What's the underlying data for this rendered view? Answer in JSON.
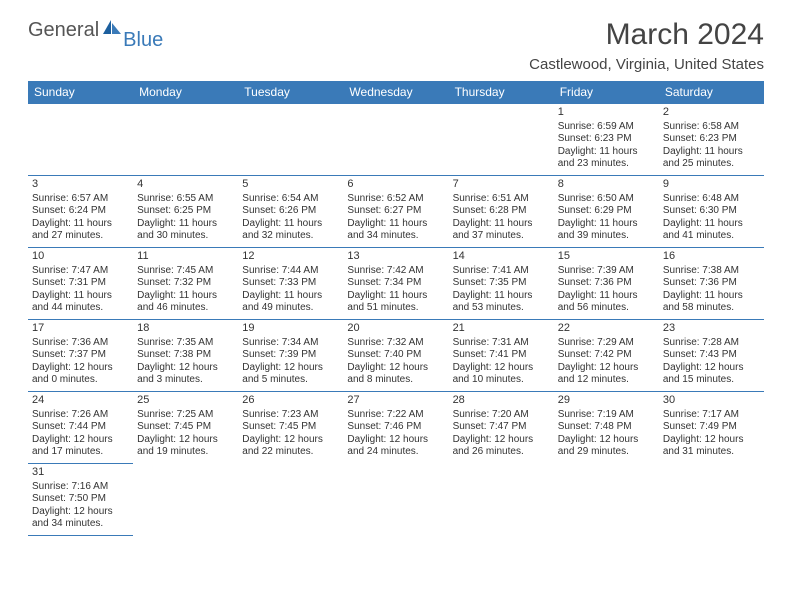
{
  "brand": {
    "general": "General",
    "blue": "Blue"
  },
  "title": "March 2024",
  "location": "Castlewood, Virginia, United States",
  "colors": {
    "header_bg": "#3a7ab8",
    "header_fg": "#ffffff",
    "border": "#3a7ab8",
    "text": "#333333"
  },
  "day_headers": [
    "Sunday",
    "Monday",
    "Tuesday",
    "Wednesday",
    "Thursday",
    "Friday",
    "Saturday"
  ],
  "weeks": [
    [
      null,
      null,
      null,
      null,
      null,
      {
        "n": "1",
        "sr": "Sunrise: 6:59 AM",
        "ss": "Sunset: 6:23 PM",
        "d1": "Daylight: 11 hours",
        "d2": "and 23 minutes."
      },
      {
        "n": "2",
        "sr": "Sunrise: 6:58 AM",
        "ss": "Sunset: 6:23 PM",
        "d1": "Daylight: 11 hours",
        "d2": "and 25 minutes."
      }
    ],
    [
      {
        "n": "3",
        "sr": "Sunrise: 6:57 AM",
        "ss": "Sunset: 6:24 PM",
        "d1": "Daylight: 11 hours",
        "d2": "and 27 minutes."
      },
      {
        "n": "4",
        "sr": "Sunrise: 6:55 AM",
        "ss": "Sunset: 6:25 PM",
        "d1": "Daylight: 11 hours",
        "d2": "and 30 minutes."
      },
      {
        "n": "5",
        "sr": "Sunrise: 6:54 AM",
        "ss": "Sunset: 6:26 PM",
        "d1": "Daylight: 11 hours",
        "d2": "and 32 minutes."
      },
      {
        "n": "6",
        "sr": "Sunrise: 6:52 AM",
        "ss": "Sunset: 6:27 PM",
        "d1": "Daylight: 11 hours",
        "d2": "and 34 minutes."
      },
      {
        "n": "7",
        "sr": "Sunrise: 6:51 AM",
        "ss": "Sunset: 6:28 PM",
        "d1": "Daylight: 11 hours",
        "d2": "and 37 minutes."
      },
      {
        "n": "8",
        "sr": "Sunrise: 6:50 AM",
        "ss": "Sunset: 6:29 PM",
        "d1": "Daylight: 11 hours",
        "d2": "and 39 minutes."
      },
      {
        "n": "9",
        "sr": "Sunrise: 6:48 AM",
        "ss": "Sunset: 6:30 PM",
        "d1": "Daylight: 11 hours",
        "d2": "and 41 minutes."
      }
    ],
    [
      {
        "n": "10",
        "sr": "Sunrise: 7:47 AM",
        "ss": "Sunset: 7:31 PM",
        "d1": "Daylight: 11 hours",
        "d2": "and 44 minutes."
      },
      {
        "n": "11",
        "sr": "Sunrise: 7:45 AM",
        "ss": "Sunset: 7:32 PM",
        "d1": "Daylight: 11 hours",
        "d2": "and 46 minutes."
      },
      {
        "n": "12",
        "sr": "Sunrise: 7:44 AM",
        "ss": "Sunset: 7:33 PM",
        "d1": "Daylight: 11 hours",
        "d2": "and 49 minutes."
      },
      {
        "n": "13",
        "sr": "Sunrise: 7:42 AM",
        "ss": "Sunset: 7:34 PM",
        "d1": "Daylight: 11 hours",
        "d2": "and 51 minutes."
      },
      {
        "n": "14",
        "sr": "Sunrise: 7:41 AM",
        "ss": "Sunset: 7:35 PM",
        "d1": "Daylight: 11 hours",
        "d2": "and 53 minutes."
      },
      {
        "n": "15",
        "sr": "Sunrise: 7:39 AM",
        "ss": "Sunset: 7:36 PM",
        "d1": "Daylight: 11 hours",
        "d2": "and 56 minutes."
      },
      {
        "n": "16",
        "sr": "Sunrise: 7:38 AM",
        "ss": "Sunset: 7:36 PM",
        "d1": "Daylight: 11 hours",
        "d2": "and 58 minutes."
      }
    ],
    [
      {
        "n": "17",
        "sr": "Sunrise: 7:36 AM",
        "ss": "Sunset: 7:37 PM",
        "d1": "Daylight: 12 hours",
        "d2": "and 0 minutes."
      },
      {
        "n": "18",
        "sr": "Sunrise: 7:35 AM",
        "ss": "Sunset: 7:38 PM",
        "d1": "Daylight: 12 hours",
        "d2": "and 3 minutes."
      },
      {
        "n": "19",
        "sr": "Sunrise: 7:34 AM",
        "ss": "Sunset: 7:39 PM",
        "d1": "Daylight: 12 hours",
        "d2": "and 5 minutes."
      },
      {
        "n": "20",
        "sr": "Sunrise: 7:32 AM",
        "ss": "Sunset: 7:40 PM",
        "d1": "Daylight: 12 hours",
        "d2": "and 8 minutes."
      },
      {
        "n": "21",
        "sr": "Sunrise: 7:31 AM",
        "ss": "Sunset: 7:41 PM",
        "d1": "Daylight: 12 hours",
        "d2": "and 10 minutes."
      },
      {
        "n": "22",
        "sr": "Sunrise: 7:29 AM",
        "ss": "Sunset: 7:42 PM",
        "d1": "Daylight: 12 hours",
        "d2": "and 12 minutes."
      },
      {
        "n": "23",
        "sr": "Sunrise: 7:28 AM",
        "ss": "Sunset: 7:43 PM",
        "d1": "Daylight: 12 hours",
        "d2": "and 15 minutes."
      }
    ],
    [
      {
        "n": "24",
        "sr": "Sunrise: 7:26 AM",
        "ss": "Sunset: 7:44 PM",
        "d1": "Daylight: 12 hours",
        "d2": "and 17 minutes."
      },
      {
        "n": "25",
        "sr": "Sunrise: 7:25 AM",
        "ss": "Sunset: 7:45 PM",
        "d1": "Daylight: 12 hours",
        "d2": "and 19 minutes."
      },
      {
        "n": "26",
        "sr": "Sunrise: 7:23 AM",
        "ss": "Sunset: 7:45 PM",
        "d1": "Daylight: 12 hours",
        "d2": "and 22 minutes."
      },
      {
        "n": "27",
        "sr": "Sunrise: 7:22 AM",
        "ss": "Sunset: 7:46 PM",
        "d1": "Daylight: 12 hours",
        "d2": "and 24 minutes."
      },
      {
        "n": "28",
        "sr": "Sunrise: 7:20 AM",
        "ss": "Sunset: 7:47 PM",
        "d1": "Daylight: 12 hours",
        "d2": "and 26 minutes."
      },
      {
        "n": "29",
        "sr": "Sunrise: 7:19 AM",
        "ss": "Sunset: 7:48 PM",
        "d1": "Daylight: 12 hours",
        "d2": "and 29 minutes."
      },
      {
        "n": "30",
        "sr": "Sunrise: 7:17 AM",
        "ss": "Sunset: 7:49 PM",
        "d1": "Daylight: 12 hours",
        "d2": "and 31 minutes."
      }
    ],
    [
      {
        "n": "31",
        "sr": "Sunrise: 7:16 AM",
        "ss": "Sunset: 7:50 PM",
        "d1": "Daylight: 12 hours",
        "d2": "and 34 minutes."
      },
      null,
      null,
      null,
      null,
      null,
      null
    ]
  ]
}
